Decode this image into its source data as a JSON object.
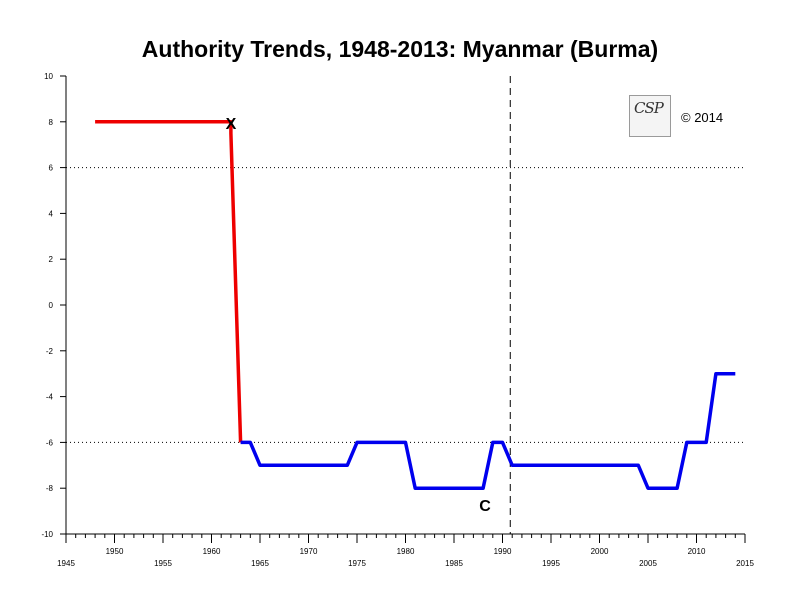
{
  "chart_data": {
    "type": "line",
    "title": "Authority Trends, 1948-2013: Myanmar (Burma)",
    "xlabel": "",
    "ylabel": "",
    "xlim": [
      1945,
      2015
    ],
    "ylim": [
      -10,
      10
    ],
    "x_major_ticks": [
      1945,
      1950,
      1955,
      1960,
      1965,
      1970,
      1975,
      1980,
      1985,
      1990,
      1995,
      2000,
      2005,
      2010,
      2015
    ],
    "y_ticks": [
      10,
      8,
      6,
      4,
      2,
      0,
      -2,
      -4,
      -6,
      -8,
      -10
    ],
    "reference_lines": [
      {
        "axis": "y",
        "value": 6,
        "style": "dotted"
      },
      {
        "axis": "y",
        "value": -6,
        "style": "dotted"
      },
      {
        "axis": "x",
        "value": 1990.8,
        "style": "dashed"
      }
    ],
    "series": [
      {
        "color": "#ee0000",
        "points": [
          [
            1948,
            8
          ],
          [
            1962,
            8
          ],
          [
            1962,
            7.5
          ],
          [
            1963,
            -6
          ]
        ]
      },
      {
        "color": "#0000ee",
        "points": [
          [
            1963,
            -6
          ],
          [
            1964,
            -6
          ],
          [
            1965,
            -7
          ],
          [
            1974,
            -7
          ],
          [
            1975,
            -6
          ],
          [
            1980,
            -6
          ],
          [
            1981,
            -8
          ],
          [
            1988,
            -8
          ],
          [
            1989,
            -6
          ],
          [
            1990,
            -6
          ],
          [
            1991,
            -7
          ],
          [
            2004,
            -7
          ],
          [
            2005,
            -8
          ],
          [
            2008,
            -8
          ],
          [
            2009,
            -6
          ],
          [
            2011,
            -6
          ],
          [
            2012,
            -3
          ],
          [
            2014,
            -3
          ]
        ]
      }
    ],
    "annotations": [
      {
        "text": "X",
        "x": 1962,
        "y": 8
      },
      {
        "text": "C",
        "x": 1988.2,
        "y": -8.7
      }
    ],
    "logo_text": "CSP",
    "copyright": "© 2014"
  }
}
